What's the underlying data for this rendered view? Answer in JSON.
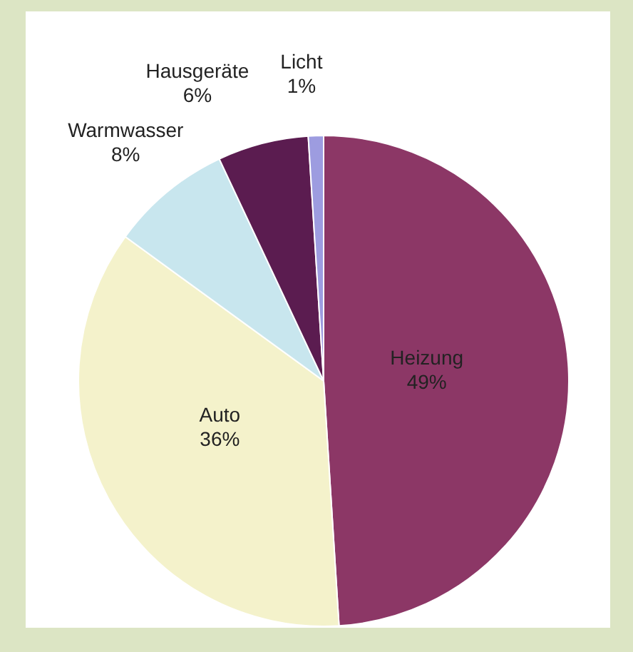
{
  "chart_data": {
    "type": "pie",
    "categories": [
      "Heizung",
      "Auto",
      "Warmwasser",
      "Hausgeräte",
      "Licht"
    ],
    "values": [
      49,
      36,
      8,
      6,
      1
    ],
    "value_labels": [
      "49%",
      "36%",
      "8%",
      "6%",
      "1%"
    ],
    "colors": [
      "#8c3766",
      "#f4f2cb",
      "#c8e6ee",
      "#5b1c50",
      "#9d9ce0"
    ],
    "legend": false
  }
}
